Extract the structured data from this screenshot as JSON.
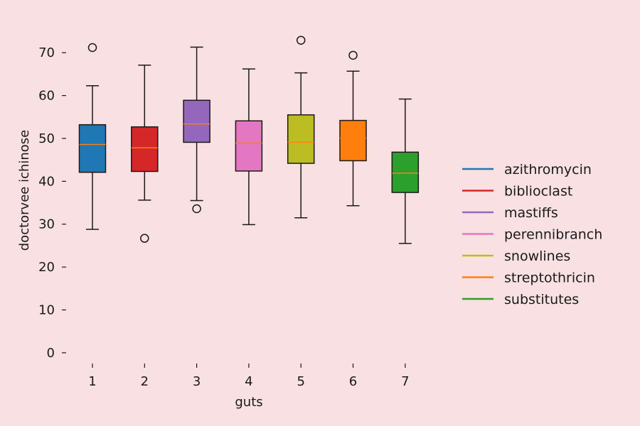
{
  "chart_data": {
    "type": "box",
    "xlabel": "guts",
    "ylabel": "doctorvee ichinose",
    "ylim": [
      -3,
      76
    ],
    "yticks": [
      0,
      10,
      20,
      30,
      40,
      50,
      60,
      70
    ],
    "grid": false,
    "legend_position": "right",
    "categories": [
      "1",
      "2",
      "3",
      "4",
      "5",
      "6",
      "7"
    ],
    "series": [
      {
        "name": "azithromycin",
        "color": "#1f77b4",
        "whisker_low": 28.8,
        "q1": 42.1,
        "median": 48.6,
        "q3": 53.2,
        "whisker_high": 62.3,
        "outliers": [
          71.2
        ]
      },
      {
        "name": "biblioclast",
        "color": "#d62728",
        "whisker_low": 35.6,
        "q1": 42.3,
        "median": 47.8,
        "q3": 52.7,
        "whisker_high": 67.1,
        "outliers": [
          26.7
        ]
      },
      {
        "name": "mastiffs",
        "color": "#9467bd",
        "whisker_low": 35.5,
        "q1": 49.1,
        "median": 53.4,
        "q3": 58.9,
        "whisker_high": 71.3,
        "outliers": [
          33.6
        ]
      },
      {
        "name": "perennibranch",
        "color": "#e377c2",
        "whisker_low": 29.9,
        "q1": 42.4,
        "median": 48.9,
        "q3": 54.1,
        "whisker_high": 66.2,
        "outliers": []
      },
      {
        "name": "snowlines",
        "color": "#bcbd22",
        "whisker_low": 31.5,
        "q1": 44.2,
        "median": 49.1,
        "q3": 55.5,
        "whisker_high": 65.3,
        "outliers": [
          72.9
        ]
      },
      {
        "name": "streptothricin",
        "color": "#ff7f0e",
        "whisker_low": 34.3,
        "q1": 44.8,
        "median": 50.1,
        "q3": 54.2,
        "whisker_high": 65.7,
        "outliers": [
          69.4
        ]
      },
      {
        "name": "substitutes",
        "color": "#2ca02c",
        "whisker_low": 25.5,
        "q1": 37.4,
        "median": 41.9,
        "q3": 46.8,
        "whisker_high": 59.2,
        "outliers": []
      }
    ],
    "median_color": "#ff7f0e"
  }
}
